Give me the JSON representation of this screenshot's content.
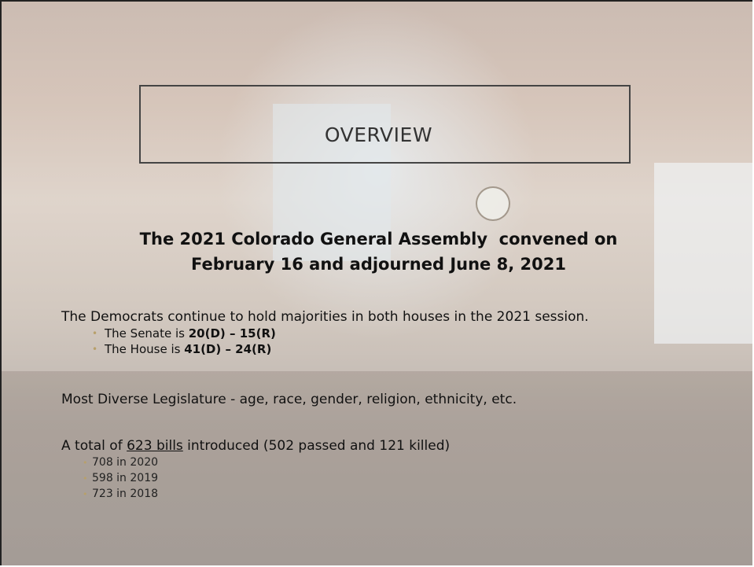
{
  "slide": {
    "title": "OVERVIEW",
    "heading": {
      "line1": "The 2021 Colorado General Assembly  convened on",
      "line2": [
        "February 16",
        " and adjourned ",
        "June 8, 2021"
      ]
    },
    "points": [
      {
        "text": "The Democrats continue to hold majorities in both houses in the 2021 session.",
        "subpoints": [
          {
            "text": "The Senate is ",
            "emphasis": "20(D) – 15(R)"
          },
          {
            "text": "The House is ",
            "emphasis": "41(D) – 24(R)"
          }
        ]
      },
      {
        "text": "Most Diverse Legislature - age, race, gender, religion, ethnicity, etc."
      },
      {
        "text_before": "A total of ",
        "link": "623 bills",
        "text_after": " introduced (502 passed and 121 killed)",
        "subpoints": [
          "708 in 2020",
          "598 in 2019",
          "723 in 2018"
        ]
      }
    ]
  }
}
